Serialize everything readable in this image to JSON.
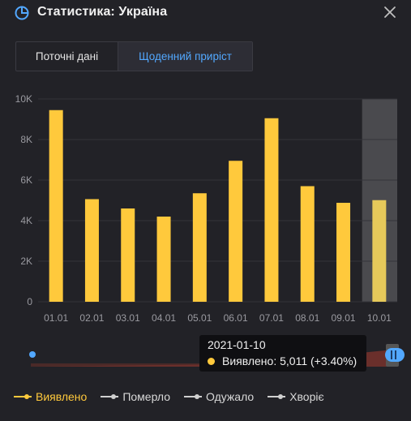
{
  "header": {
    "title": "Статистика: Україна",
    "icon": "pie-chart-icon"
  },
  "tabs": [
    {
      "label": "Поточні дані",
      "active": false
    },
    {
      "label": "Щоденний приріст",
      "active": true
    }
  ],
  "tooltip": {
    "date": "2021-01-10",
    "text": "Виявлено: 5,011 (+3.40%)"
  },
  "legend": [
    {
      "label": "Виявлено",
      "active": true
    },
    {
      "label": "Померло",
      "active": false
    },
    {
      "label": "Одужало",
      "active": false
    },
    {
      "label": "Хворіє",
      "active": false
    }
  ],
  "colors": {
    "bar": "#ffc93c",
    "highlight_bar": "#e6c95a",
    "accent": "#52a8ff",
    "background": "#222227"
  },
  "chart_data": {
    "type": "bar",
    "categories": [
      "01.01",
      "02.01",
      "03.01",
      "04.01",
      "05.01",
      "06.01",
      "07.01",
      "08.01",
      "09.01",
      "10.01"
    ],
    "series": [
      {
        "name": "Виявлено",
        "values": [
          9450,
          5060,
          4600,
          4200,
          5350,
          6950,
          9050,
          5700,
          4880,
          5011
        ]
      }
    ],
    "ylim": [
      0,
      10000
    ],
    "yticks": [
      "0",
      "2K",
      "4K",
      "6K",
      "8K",
      "10K"
    ],
    "highlighted_category": "10.01",
    "grid": true
  }
}
